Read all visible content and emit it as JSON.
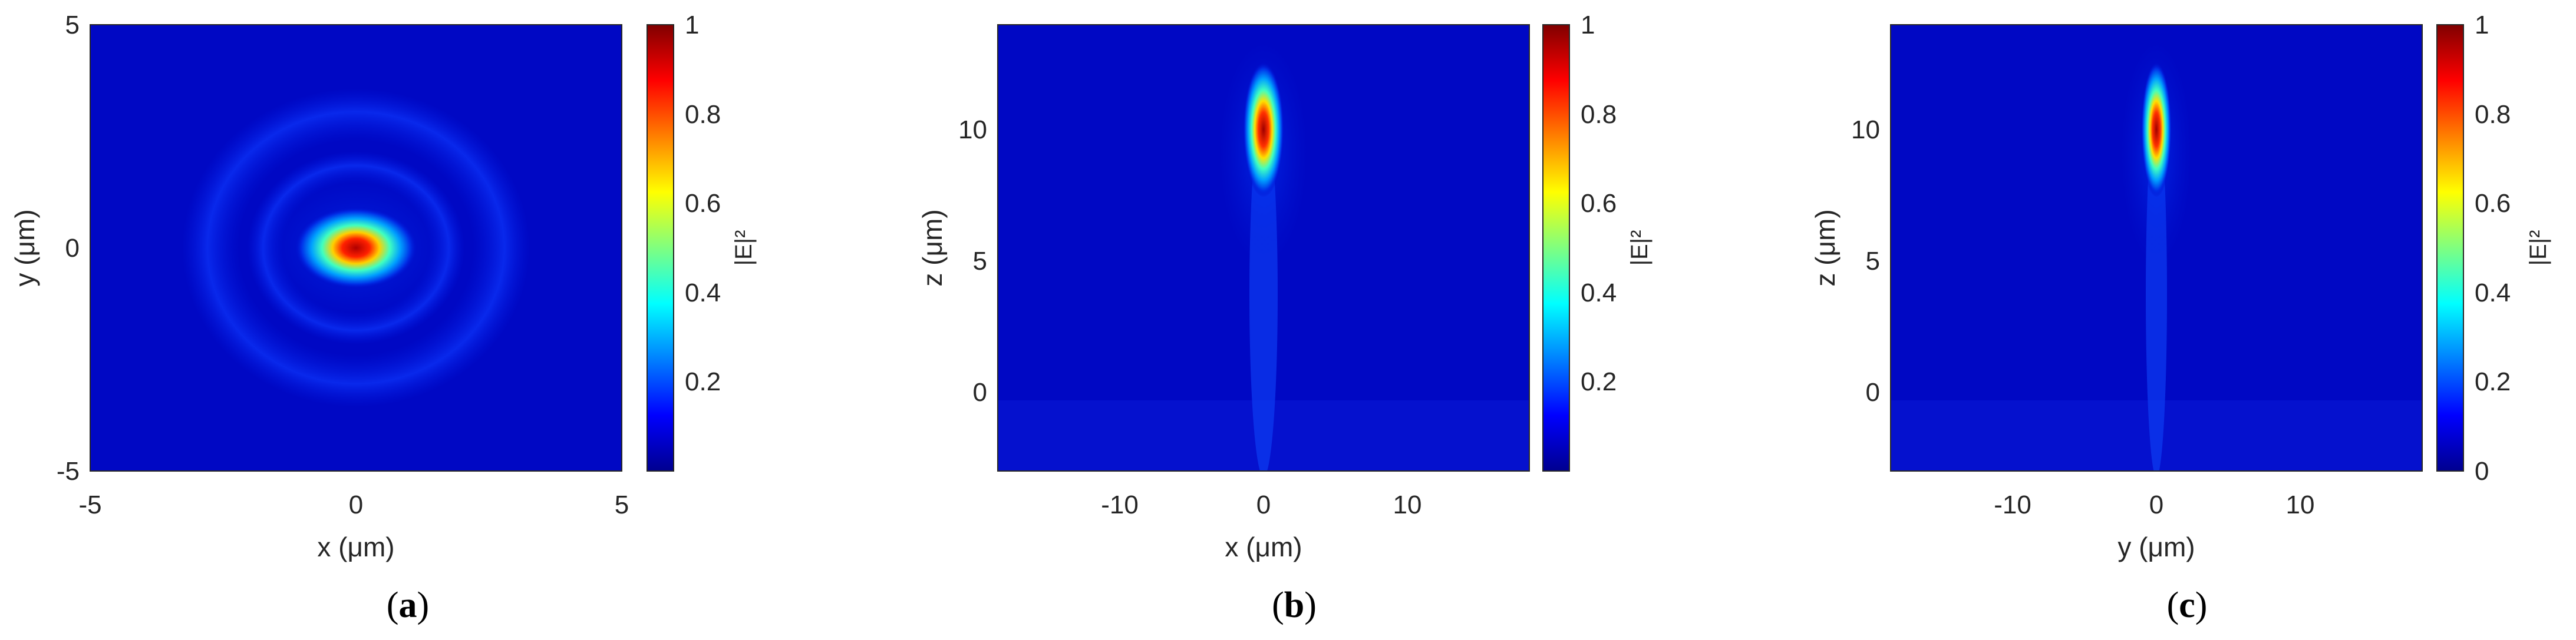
{
  "chart_data": [
    {
      "type": "heatmap",
      "panel_label": "a",
      "xlabel": "x (μm)",
      "ylabel": "y (μm)",
      "xlim": [
        -5,
        5
      ],
      "ylim": [
        -5,
        5
      ],
      "xticks": [
        "-5",
        "0",
        "5"
      ],
      "yticks": [
        "-5",
        "0",
        "5"
      ],
      "colorbar_label": "|E|²",
      "colorbar_ticks": [
        "0.2",
        "0.4",
        "0.6",
        "0.8",
        "1"
      ],
      "clim": [
        0,
        1
      ],
      "colormap": "jet",
      "peak": {
        "x": 0,
        "y": 0,
        "value": 1
      },
      "spot_width_x": 0.9,
      "spot_width_y": 0.5,
      "rings": [
        {
          "radius": 2.0,
          "value": 0.12
        },
        {
          "radius": 3.2,
          "value": 0.06
        }
      ]
    },
    {
      "type": "heatmap",
      "panel_label": "b",
      "xlabel": "x (μm)",
      "ylabel": "z (μm)",
      "xlim": [
        -18.5,
        18.5
      ],
      "ylim": [
        -3,
        14
      ],
      "xticks": [
        "-10",
        "0",
        "10"
      ],
      "yticks": [
        "0",
        "5",
        "10"
      ],
      "colorbar_label": "|E|²",
      "colorbar_ticks": [
        "0.2",
        "0.4",
        "0.6",
        "0.8",
        "1"
      ],
      "clim": [
        0,
        1
      ],
      "colormap": "jet",
      "peak": {
        "x": 0,
        "z": 10,
        "value": 1
      },
      "spot_width_x": 0.5,
      "spot_length_z": 1.6
    },
    {
      "type": "heatmap",
      "panel_label": "c",
      "xlabel": "y (μm)",
      "ylabel": "z (μm)",
      "xlim": [
        -18.5,
        18.5
      ],
      "ylim": [
        -3,
        14
      ],
      "xticks": [
        "-10",
        "0",
        "10"
      ],
      "yticks": [
        "0",
        "5",
        "10"
      ],
      "colorbar_label": "|E|²",
      "colorbar_ticks": [
        "0",
        "0.2",
        "0.4",
        "0.6",
        "0.8",
        "1"
      ],
      "clim": [
        0,
        1
      ],
      "colormap": "jet",
      "peak": {
        "y": 0,
        "z": 10,
        "value": 1
      },
      "spot_width_x": 0.35,
      "spot_length_z": 1.6
    }
  ],
  "captions": [
    "a",
    "b",
    "c"
  ]
}
